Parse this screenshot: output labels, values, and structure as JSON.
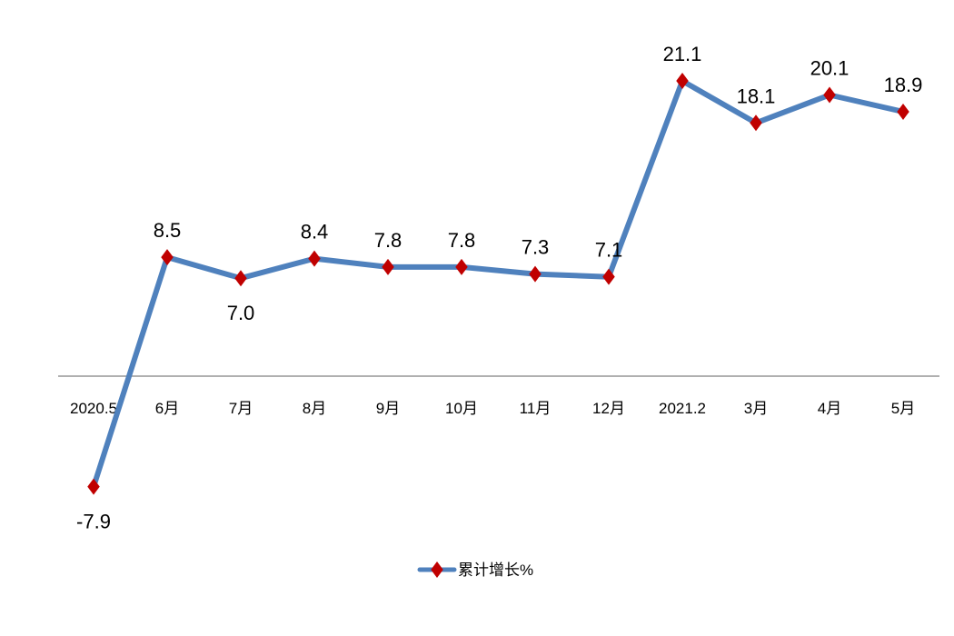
{
  "chart_data": {
    "type": "line",
    "categories": [
      "2020.5",
      "6月",
      "7月",
      "8月",
      "9月",
      "10月",
      "11月",
      "12月",
      "2021.2",
      "3月",
      "4月",
      "5月"
    ],
    "series": [
      {
        "name": "累计增长%",
        "values": [
          -7.9,
          8.5,
          7.0,
          8.4,
          7.8,
          7.8,
          7.3,
          7.1,
          21.1,
          18.1,
          20.1,
          18.9
        ],
        "labels": [
          "-7.9",
          "8.5",
          "7.0",
          "8.4",
          "7.8",
          "7.8",
          "7.3",
          "7.1",
          "21.1",
          "18.1",
          "20.1",
          "18.9"
        ]
      }
    ],
    "ylim": [
      -10,
      25
    ],
    "grid": false,
    "legend_position": "bottom-center",
    "colors": {
      "line": "#4F81BD",
      "marker": "#C00000",
      "axis": "#808080"
    }
  }
}
